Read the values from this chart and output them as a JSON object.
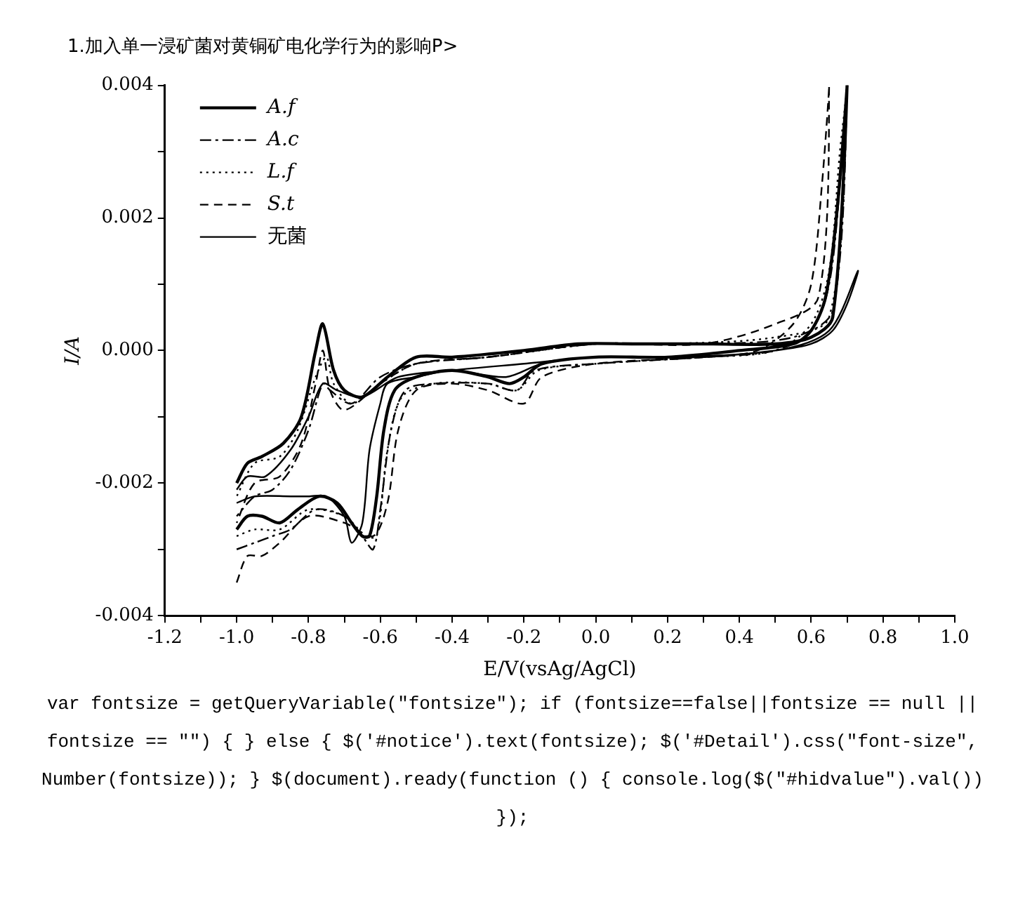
{
  "chart_data": {
    "type": "line",
    "title": "1.加入单一浸矿菌对黄铜矿电化学行为的影响P>",
    "xlabel": "E/V(vsAg/AgCl)",
    "ylabel": "I/A",
    "xlim": [
      -1.2,
      1.0
    ],
    "ylim": [
      -0.004,
      0.004
    ],
    "xticks": [
      -1.2,
      {
        "value": -1.1,
        "label": null
      },
      {
        "value": -1,
        "label": "-1.0"
      },
      {
        "value": -0.9,
        "label": null
      },
      -0.8,
      {
        "value": -0.7,
        "label": null
      },
      -0.6,
      {
        "value": -0.5,
        "label": null
      },
      -0.4,
      {
        "value": -0.3,
        "label": null
      },
      -0.2,
      {
        "value": -0.1,
        "label": null
      },
      {
        "value": 0,
        "label": "0.0"
      },
      {
        "value": 0.1,
        "label": null
      },
      0.2,
      {
        "value": 0.3,
        "label": null
      },
      0.4,
      {
        "value": 0.5,
        "label": null
      },
      0.6,
      {
        "value": 0.7,
        "label": null
      },
      0.8,
      {
        "value": 0.9,
        "label": null
      },
      {
        "value": 1,
        "label": "1.0"
      }
    ],
    "yticks": [
      -0.004,
      {
        "value": -0.003,
        "label": null
      },
      -0.002,
      {
        "value": -0.001,
        "label": null
      },
      {
        "value": 0,
        "label": "0.000"
      },
      {
        "value": 0.001,
        "label": null
      },
      0.002,
      {
        "value": 0.003,
        "label": null
      },
      0.004
    ],
    "grid": false,
    "legend": "top left",
    "marker": "none",
    "series": [
      {
        "name": "A.f",
        "color": "#000000",
        "line_style": "solid",
        "x": [
          -1.0,
          -0.97,
          -0.93,
          -0.88,
          -0.83,
          -0.77,
          -0.72,
          -0.68,
          -0.65,
          -0.63,
          -0.61,
          -0.59,
          -0.56,
          -0.5,
          -0.4,
          -0.3,
          -0.24,
          -0.2,
          -0.15,
          0.0,
          0.2,
          0.4,
          0.55,
          0.6,
          0.64,
          0.67,
          0.7,
          0.66,
          0.6,
          0.5,
          0.3,
          0.1,
          -0.05,
          -0.2,
          -0.4,
          -0.5,
          -0.58,
          -0.65,
          -0.7,
          -0.73,
          -0.76,
          -0.78,
          -0.82,
          -0.87,
          -0.93,
          -0.97,
          -1.0
        ],
        "values": [
          -0.0027,
          -0.0025,
          -0.0025,
          -0.0026,
          -0.0024,
          -0.0022,
          -0.0023,
          -0.0026,
          -0.0028,
          -0.0028,
          -0.0022,
          -0.0012,
          -0.0006,
          -0.0004,
          -0.0003,
          -0.0004,
          -0.0005,
          -0.0004,
          -0.0002,
          -0.0001,
          -0.0001,
          0.0,
          0.0001,
          0.0003,
          0.0008,
          0.002,
          0.004,
          0.0005,
          0.0002,
          0.0001,
          0.0001,
          0.0001,
          0.0001,
          0.0,
          -0.0001,
          -0.0001,
          -0.0004,
          -0.0007,
          -0.0006,
          -0.0003,
          0.0004,
          0.0,
          -0.001,
          -0.0014,
          -0.0016,
          -0.0017,
          -0.002
        ]
      },
      {
        "name": "A.c",
        "color": "#000000",
        "line_style": "dashdot",
        "x": [
          -1.0,
          -0.95,
          -0.9,
          -0.85,
          -0.78,
          -0.7,
          -0.65,
          -0.62,
          -0.6,
          -0.57,
          -0.53,
          -0.45,
          -0.3,
          -0.22,
          -0.17,
          0,
          0.3,
          0.5,
          0.6,
          0.65,
          0.68,
          0.7,
          0.66,
          0.55,
          0.3,
          0,
          -0.3,
          -0.5,
          -0.6,
          -0.68,
          -0.74,
          -0.76,
          -0.8,
          -0.85,
          -0.9,
          -0.95,
          -1.0
        ],
        "values": [
          -0.003,
          -0.0029,
          -0.0028,
          -0.0027,
          -0.0024,
          -0.0025,
          -0.0028,
          -0.003,
          -0.0024,
          -0.0012,
          -0.0006,
          -0.0005,
          -0.0005,
          -0.0006,
          -0.0003,
          -0.0002,
          -0.0001,
          0.0,
          0.0003,
          0.001,
          0.0025,
          0.004,
          0.0006,
          0.0002,
          0.0001,
          0.0001,
          -0.0001,
          -0.0002,
          -0.0004,
          -0.0008,
          -0.0006,
          -0.0005,
          -0.0012,
          -0.0018,
          -0.0021,
          -0.0022,
          -0.0025
        ]
      },
      {
        "name": "L.f",
        "color": "#000000",
        "line_style": "dotted",
        "x": [
          -1.0,
          -0.95,
          -0.88,
          -0.8,
          -0.7,
          -0.64,
          -0.61,
          -0.58,
          -0.54,
          -0.45,
          -0.3,
          -0.22,
          -0.16,
          0,
          0.3,
          0.5,
          0.6,
          0.65,
          0.68,
          0.7,
          0.65,
          0.5,
          0.2,
          0,
          -0.3,
          -0.5,
          -0.6,
          -0.68,
          -0.73,
          -0.75,
          -0.78,
          -0.83,
          -0.88,
          -0.95,
          -1.0
        ],
        "values": [
          -0.0028,
          -0.0027,
          -0.0027,
          -0.0024,
          -0.0025,
          -0.0028,
          -0.0028,
          -0.0015,
          -0.0007,
          -0.0005,
          -0.0005,
          -0.0006,
          -0.0003,
          -0.0002,
          -0.0001,
          0.0,
          0.0004,
          0.0012,
          0.003,
          0.004,
          0.0005,
          0.0002,
          0.0001,
          0.0001,
          -0.0001,
          -0.0002,
          -0.0005,
          -0.0008,
          -0.0005,
          -0.0001,
          -0.0004,
          -0.0012,
          -0.0016,
          -0.0017,
          -0.0022
        ]
      },
      {
        "name": "S.t",
        "color": "#000000",
        "line_style": "dashed",
        "x": [
          -1.0,
          -0.97,
          -0.93,
          -0.88,
          -0.8,
          -0.7,
          -0.62,
          -0.58,
          -0.55,
          -0.5,
          -0.4,
          -0.3,
          -0.2,
          -0.15,
          0,
          0.3,
          0.45,
          0.55,
          0.6,
          0.63,
          0.65,
          0.62,
          0.5,
          0.3,
          0,
          -0.3,
          -0.5,
          -0.6,
          -0.7,
          -0.74,
          -0.76,
          -0.78,
          -0.82,
          -0.88,
          -0.95,
          -1.0
        ],
        "values": [
          -0.0035,
          -0.0031,
          -0.0031,
          -0.0029,
          -0.0025,
          -0.0026,
          -0.0028,
          -0.0023,
          -0.0012,
          -0.0006,
          -0.0005,
          -0.0006,
          -0.0008,
          -0.0004,
          -0.0002,
          -0.0001,
          0.0,
          0.0004,
          0.001,
          0.0025,
          0.004,
          0.0008,
          0.0004,
          0.0001,
          0.0001,
          -0.0001,
          -0.0002,
          -0.0005,
          -0.0009,
          -0.0006,
          0.0,
          -0.0005,
          -0.0014,
          -0.0019,
          -0.002,
          -0.0026
        ]
      },
      {
        "name": "无菌",
        "color": "#000000",
        "line_style": "solid",
        "x": [
          -1.0,
          -0.95,
          -0.85,
          -0.8,
          -0.75,
          -0.7,
          -0.68,
          -0.65,
          -0.63,
          -0.6,
          -0.58,
          -0.5,
          -0.4,
          -0.25,
          -0.15,
          0,
          0.3,
          0.5,
          0.6,
          0.66,
          0.7,
          0.73,
          0.65,
          0.5,
          0.2,
          0,
          -0.2,
          -0.4,
          -0.55,
          -0.65,
          -0.72,
          -0.76,
          -0.8,
          -0.85,
          -0.92,
          -0.97,
          -1.0
        ],
        "values": [
          -0.0023,
          -0.0022,
          -0.0022,
          -0.0022,
          -0.0022,
          -0.0025,
          -0.0029,
          -0.0026,
          -0.0015,
          -0.0008,
          -0.0005,
          -0.0004,
          -0.0003,
          -0.0004,
          -0.0002,
          -0.0001,
          -0.0001,
          0.0,
          0.0001,
          0.0003,
          0.0007,
          0.0012,
          0.0003,
          0.0,
          -0.0001,
          -0.0001,
          -0.0002,
          -0.0003,
          -0.0004,
          -0.0007,
          -0.0006,
          -0.0005,
          -0.001,
          -0.0015,
          -0.0019,
          -0.0019,
          -0.0021
        ]
      }
    ],
    "annotations": [
      "var fontsize = getQueryVariable(\"fontsize\"); if (fontsize==false||fontsize == null || fontsize == \"\") { } else { $('#notice').text(fontsize); $('#Detail').css(\"font-size\", Number(fontsize)); } $(document).ready(function () { console.log($(\"#hidvalue\").val()) });"
    ]
  }
}
